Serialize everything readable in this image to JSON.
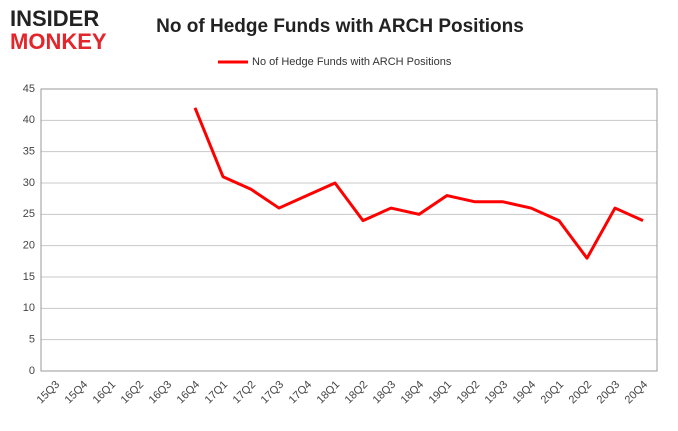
{
  "logo": [
    "INSIDER",
    "MONKEY"
  ],
  "chart_data": {
    "type": "line",
    "title": "No of Hedge Funds with ARCH Positions",
    "categories": [
      "15Q3",
      "15Q4",
      "16Q1",
      "16Q2",
      "16Q3",
      "16Q4",
      "17Q1",
      "17Q2",
      "17Q3",
      "17Q4",
      "18Q1",
      "18Q2",
      "18Q3",
      "18Q4",
      "19Q1",
      "19Q2",
      "19Q3",
      "19Q4",
      "20Q1",
      "20Q2",
      "20Q3",
      "20Q4"
    ],
    "series": [
      {
        "name": "No of Hedge Funds with ARCH Positions",
        "color": "#ff0000",
        "values": [
          null,
          null,
          null,
          null,
          null,
          42,
          31,
          29,
          26,
          28,
          30,
          24,
          26,
          25,
          28,
          27,
          27,
          26,
          24,
          18,
          26,
          24
        ]
      }
    ],
    "ylim": [
      0,
      45
    ],
    "yticks": [
      0,
      5,
      10,
      15,
      20,
      25,
      30,
      35,
      40,
      45
    ],
    "grid": true,
    "legend": "top"
  }
}
